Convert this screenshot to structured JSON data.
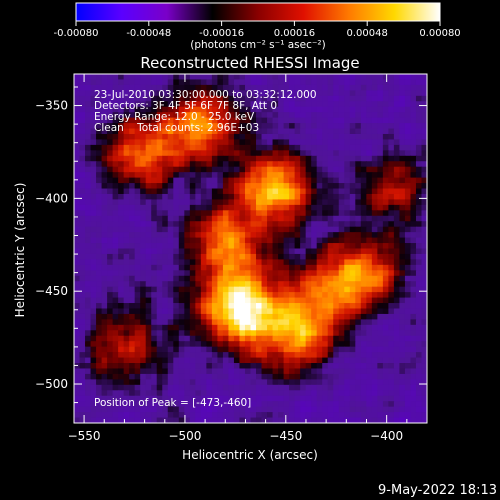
{
  "colorbar": {
    "tick_labels": [
      "-0.00080",
      "-0.00048",
      "-0.00016",
      "0.00016",
      "0.00048",
      "0.00080"
    ],
    "unit_label": "(photons cm⁻² s⁻¹ asec⁻²)",
    "colors": [
      "#0000ff",
      "#5a00ff",
      "#7a00c8",
      "#000000",
      "#8a0000",
      "#e01000",
      "#ff7a00",
      "#ffd800",
      "#ffffff"
    ]
  },
  "plot": {
    "title": "Reconstructed RHESSI Image",
    "xlabel": "Heliocentric X (arcsec)",
    "ylabel": "Heliocentric Y (arcsec)",
    "info_lines": [
      "23-Jul-2010 03:30:00.000 to 03:32:12.000",
      "Detectors: 3F 4F 5F 6F 7F 8F, Att 0",
      "Energy Range: 12.0 - 25.0 keV",
      "Clean    Total counts: 2.96E+03"
    ],
    "peak_label": "Position of Peak = [-473,-460]"
  },
  "footer": {
    "timestamp": "9-May-2022 18:13"
  },
  "chart_data": {
    "type": "heatmap",
    "title": "Reconstructed RHESSI Image",
    "xlabel": "Heliocentric X (arcsec)",
    "ylabel": "Heliocentric Y (arcsec)",
    "xlim": [
      -555,
      -380
    ],
    "ylim": [
      -521,
      -333
    ],
    "xticks": [
      -550,
      -500,
      -450,
      -400
    ],
    "yticks": [
      -350,
      -400,
      -450,
      -500
    ],
    "colorbar_range": [
      -0.0008,
      0.0008
    ],
    "peak": [
      -473,
      -460
    ],
    "emission_sources": [
      {
        "x": -473,
        "y": -460,
        "intensity": 1.0
      },
      {
        "x": -455,
        "y": -395,
        "intensity": 0.85
      },
      {
        "x": -480,
        "y": -425,
        "intensity": 0.75
      },
      {
        "x": -520,
        "y": -375,
        "intensity": 0.7
      },
      {
        "x": -445,
        "y": -475,
        "intensity": 0.7
      },
      {
        "x": -490,
        "y": -360,
        "intensity": 0.65
      },
      {
        "x": -430,
        "y": -450,
        "intensity": 0.55
      },
      {
        "x": -530,
        "y": -480,
        "intensity": 0.5
      },
      {
        "x": -410,
        "y": -440,
        "intensity": 0.55
      },
      {
        "x": -395,
        "y": -395,
        "intensity": 0.45
      }
    ]
  }
}
